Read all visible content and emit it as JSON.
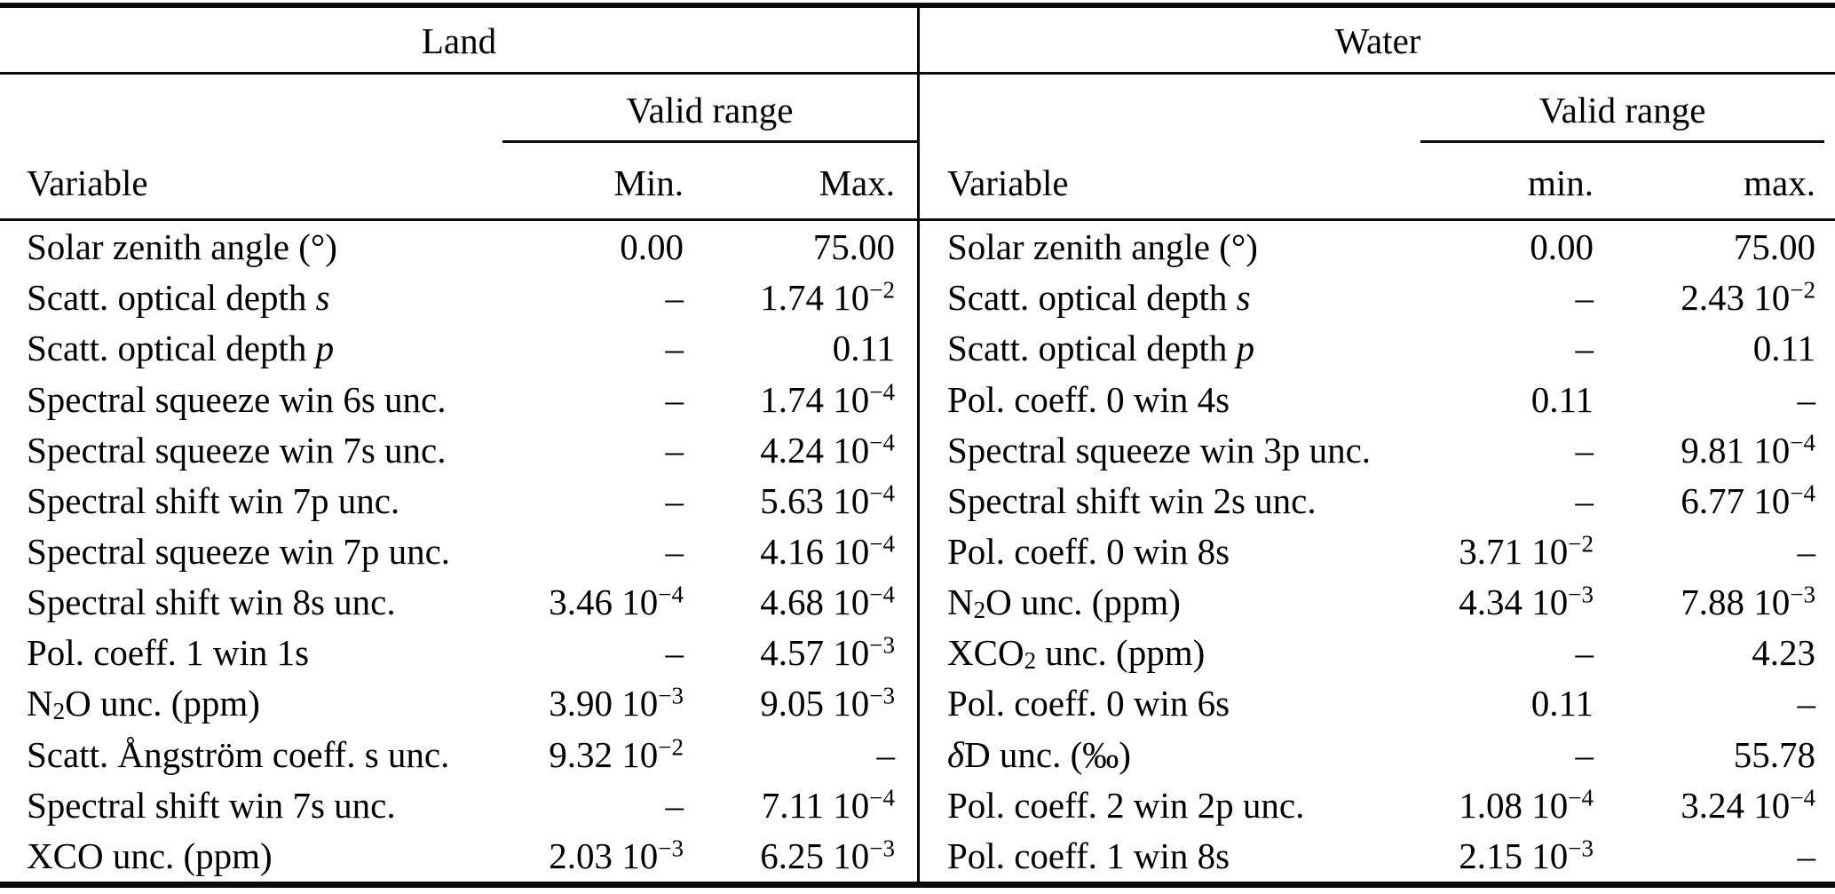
{
  "table": {
    "halves": [
      {
        "title": "Land",
        "valid_range_label": "Valid range",
        "variable_label": "Variable",
        "min_label": "Min.",
        "max_label": "Max.",
        "rows": [
          {
            "variable": "Solar zenith angle (°)",
            "min": "0.00",
            "max": "75.00"
          },
          {
            "variable": "Scatt. optical depth *s*",
            "min": "–",
            "max": "1.74 10^{−2}"
          },
          {
            "variable": "Scatt. optical depth *p*",
            "min": "–",
            "max": "0.11"
          },
          {
            "variable": "Spectral squeeze win 6s unc.",
            "min": "–",
            "max": "1.74 10^{−4}"
          },
          {
            "variable": "Spectral squeeze win 7s unc.",
            "min": "–",
            "max": "4.24 10^{−4}"
          },
          {
            "variable": "Spectral shift win 7p unc.",
            "min": "–",
            "max": "5.63 10^{−4}"
          },
          {
            "variable": "Spectral squeeze win 7p unc.",
            "min": "–",
            "max": "4.16 10^{−4}"
          },
          {
            "variable": "Spectral shift win 8s unc.",
            "min": "3.46 10^{−4}",
            "max": "4.68 10^{−4}"
          },
          {
            "variable": "Pol. coeff. 1 win 1s",
            "min": "–",
            "max": "4.57 10^{−3}"
          },
          {
            "variable": "N_{2}O unc. (ppm)",
            "min": "3.90 10^{−3}",
            "max": "9.05 10^{−3}"
          },
          {
            "variable": "Scatt. Ångström coeff. s unc.",
            "min": "9.32 10^{−2}",
            "max": "–"
          },
          {
            "variable": "Spectral shift win 7s unc.",
            "min": "–",
            "max": "7.11 10^{−4}"
          },
          {
            "variable": "XCO unc. (ppm)",
            "min": "2.03 10^{−3}",
            "max": "6.25 10^{−3}"
          }
        ]
      },
      {
        "title": "Water",
        "valid_range_label": "Valid range",
        "variable_label": "Variable",
        "min_label": "min.",
        "max_label": "max.",
        "rows": [
          {
            "variable": "Solar zenith angle (°)",
            "min": "0.00",
            "max": "75.00"
          },
          {
            "variable": "Scatt. optical depth *s*",
            "min": "–",
            "max": "2.43 10^{−2}"
          },
          {
            "variable": "Scatt. optical depth *p*",
            "min": "–",
            "max": "0.11"
          },
          {
            "variable": "Pol. coeff. 0 win 4s",
            "min": "0.11",
            "max": "–"
          },
          {
            "variable": "Spectral squeeze win 3p unc.",
            "min": "–",
            "max": "9.81 10^{−4}"
          },
          {
            "variable": "Spectral shift win 2s unc.",
            "min": "–",
            "max": "6.77 10^{−4}"
          },
          {
            "variable": "Pol. coeff. 0 win 8s",
            "min": "3.71 10^{−2}",
            "max": "–"
          },
          {
            "variable": "N_{2}O unc. (ppm)",
            "min": "4.34 10^{−3}",
            "max": "7.88 10^{−3}"
          },
          {
            "variable": "XCO_{2} unc. (ppm)",
            "min": "–",
            "max": "4.23"
          },
          {
            "variable": "Pol. coeff. 0 win 6s",
            "min": "0.11",
            "max": "–"
          },
          {
            "variable": "*δ*D unc. (‰)",
            "min": "–",
            "max": "55.78"
          },
          {
            "variable": "Pol. coeff. 2 win 2p unc.",
            "min": "1.08 10^{−4}",
            "max": "3.24 10^{−4}"
          },
          {
            "variable": "Pol. coeff. 1 win 8s",
            "min": "2.15 10^{−3}",
            "max": "–"
          }
        ]
      }
    ]
  }
}
